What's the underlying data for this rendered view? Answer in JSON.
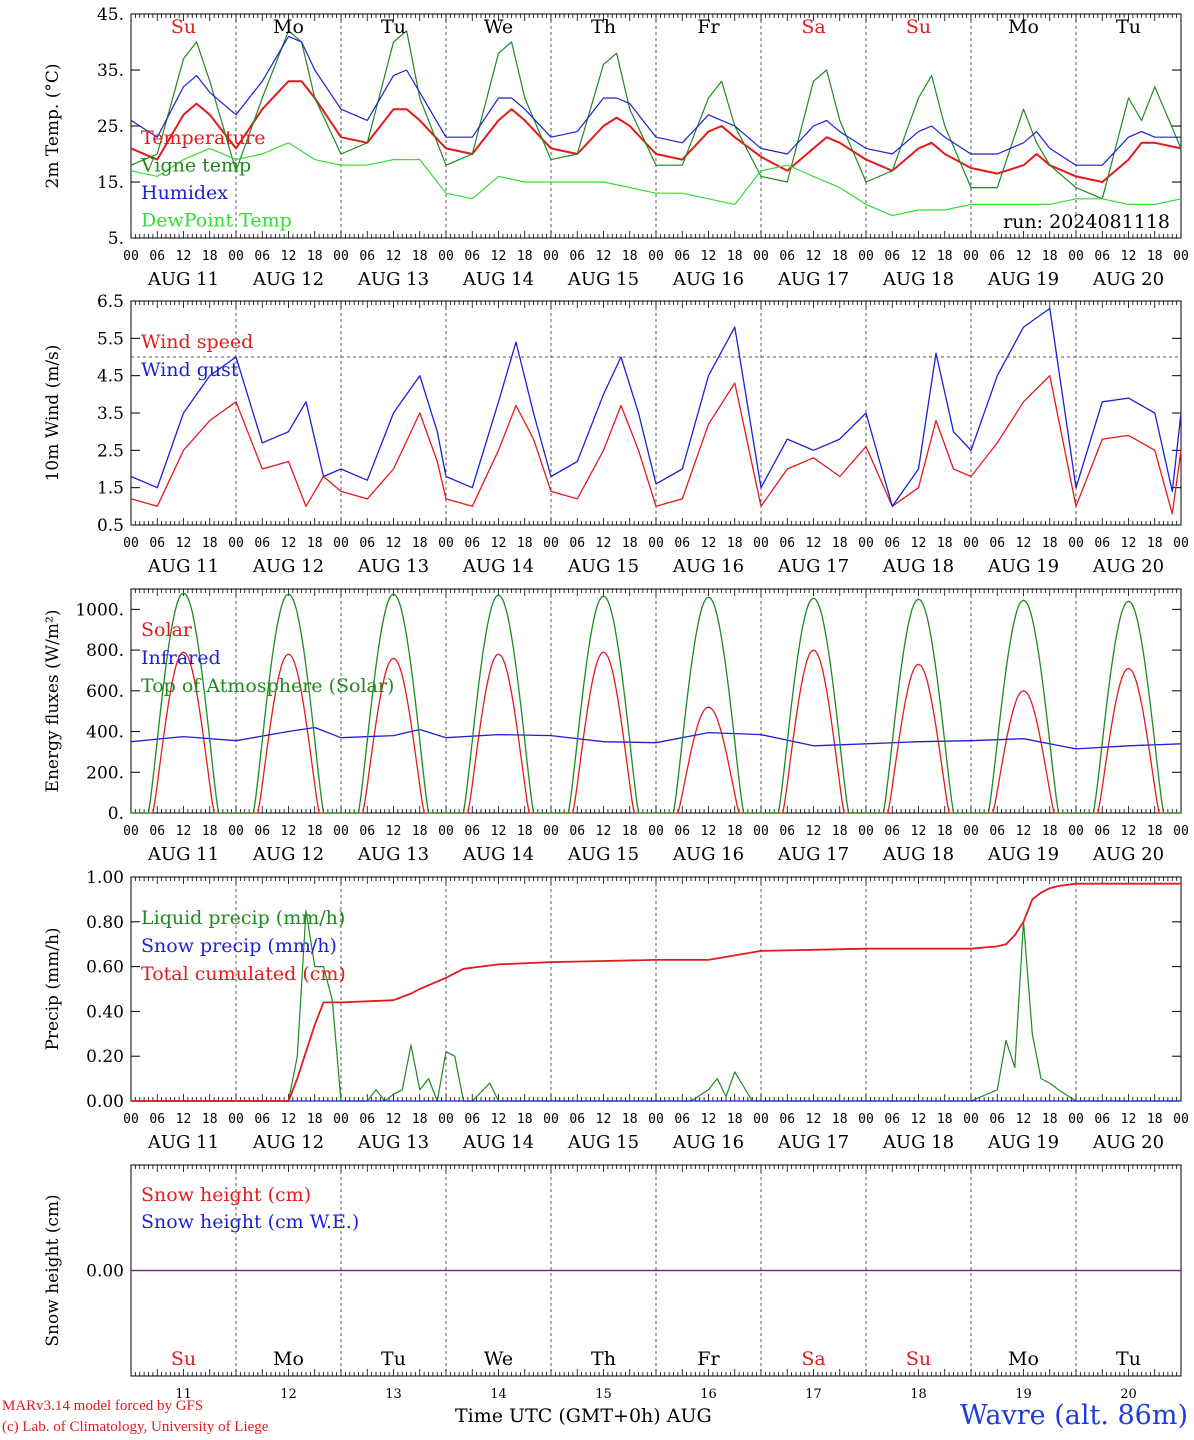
{
  "colors": {
    "red": "#e41a1c",
    "darkgreen": "#1f8a1f",
    "blue": "#1f1fd8",
    "lightgreen": "#33dd33",
    "purple": "#7a2a8a",
    "station": "#1f3bdc"
  },
  "x_axis": {
    "hour_ticks": [
      "00",
      "06",
      "12",
      "18"
    ],
    "end_tick": "00",
    "dates": [
      "AUG 11",
      "AUG 12",
      "AUG 13",
      "AUG 14",
      "AUG 15",
      "AUG 16",
      "AUG 17",
      "AUG 18",
      "AUG 19",
      "AUG 20"
    ],
    "day_names": [
      "Su",
      "Mo",
      "Tu",
      "We",
      "Th",
      "Fr",
      "Sa",
      "Su",
      "Mo",
      "Tu"
    ],
    "day_colors": [
      "red",
      "black",
      "black",
      "black",
      "black",
      "black",
      "red",
      "red",
      "black",
      "black"
    ],
    "day_numbers": [
      "11",
      "12",
      "13",
      "14",
      "15",
      "16",
      "17",
      "18",
      "19",
      "20"
    ],
    "title": "Time UTC (GMT+0h)",
    "month": "AUG"
  },
  "footer": {
    "credit1": "MARv3.14 model forced by GFS",
    "credit2": "(c) Lab. of Climatology, University of Liege",
    "station": "Wavre (alt. 86m)"
  },
  "chart_data": [
    {
      "type": "line",
      "ylabel": "2m Temp. (°C)",
      "ylim": [
        5,
        45
      ],
      "yticks": [
        "45.",
        "35.",
        "25.",
        "15.",
        "5."
      ],
      "yticks_values": [
        45,
        35,
        25,
        15,
        5
      ],
      "run_label": "run: 2024081118",
      "x_unit": "hours since AUG 11 00 UTC",
      "series": [
        {
          "name": "Temperature",
          "color": "red",
          "x": [
            0,
            6,
            12,
            15,
            18,
            24,
            30,
            36,
            39,
            42,
            48,
            54,
            60,
            63,
            66,
            72,
            78,
            84,
            87,
            90,
            96,
            102,
            108,
            111,
            114,
            120,
            126,
            132,
            135,
            138,
            144,
            150,
            156,
            159,
            162,
            168,
            174,
            180,
            183,
            186,
            192,
            198,
            204,
            207,
            210,
            216,
            222,
            228,
            231,
            234,
            240
          ],
          "values": [
            21,
            19,
            27,
            29,
            27,
            21,
            28,
            33,
            33,
            30,
            23,
            22,
            28,
            28,
            26,
            21,
            20,
            26,
            28,
            26,
            21,
            20,
            25,
            26.5,
            25,
            20,
            19,
            24,
            25,
            23,
            19.5,
            17,
            21,
            23,
            22,
            19,
            17,
            21,
            22,
            20,
            17.5,
            16.5,
            18,
            20,
            18,
            16,
            15,
            19,
            22,
            22,
            21
          ]
        },
        {
          "name": "Vigne temp",
          "color": "darkgreen",
          "x": [
            0,
            6,
            12,
            15,
            18,
            24,
            30,
            36,
            39,
            42,
            48,
            54,
            60,
            63,
            66,
            72,
            78,
            84,
            87,
            90,
            96,
            102,
            108,
            111,
            114,
            120,
            126,
            132,
            135,
            138,
            144,
            150,
            156,
            159,
            162,
            168,
            174,
            180,
            183,
            186,
            192,
            198,
            204,
            207,
            210,
            216,
            222,
            228,
            231,
            234,
            240
          ],
          "values": [
            18,
            20,
            37,
            40,
            33,
            17,
            30,
            42,
            40,
            30,
            20,
            22,
            40,
            42,
            30,
            18,
            20,
            38,
            40,
            30,
            19,
            20,
            36,
            38,
            28,
            18,
            18,
            30,
            33,
            25,
            16,
            15,
            33,
            35,
            26,
            15,
            17,
            30,
            34,
            25,
            14,
            14,
            28,
            22,
            18,
            14,
            12,
            30,
            26,
            32,
            21
          ]
        },
        {
          "name": "Humidex",
          "color": "blue",
          "x": [
            0,
            6,
            12,
            15,
            18,
            24,
            30,
            36,
            39,
            42,
            48,
            54,
            60,
            63,
            66,
            72,
            78,
            84,
            87,
            90,
            96,
            102,
            108,
            111,
            114,
            120,
            126,
            132,
            135,
            138,
            144,
            150,
            156,
            159,
            162,
            168,
            174,
            180,
            183,
            186,
            192,
            198,
            204,
            207,
            210,
            216,
            222,
            228,
            231,
            234,
            240
          ],
          "values": [
            26,
            23,
            32,
            34,
            31,
            27,
            33,
            41,
            40,
            35,
            28,
            26,
            34,
            35,
            31,
            23,
            23,
            30,
            30,
            28,
            23,
            24,
            30,
            30,
            29,
            23,
            22,
            27,
            26,
            25,
            21,
            20,
            25,
            26,
            24,
            21,
            20,
            24,
            25,
            23,
            20,
            20,
            22,
            24,
            21,
            18,
            18,
            23,
            24,
            23,
            23
          ]
        },
        {
          "name": "DewPoint Temp",
          "color": "lightgreen",
          "x": [
            0,
            6,
            12,
            18,
            24,
            30,
            36,
            42,
            48,
            54,
            60,
            66,
            72,
            78,
            84,
            90,
            96,
            102,
            108,
            114,
            120,
            126,
            132,
            138,
            144,
            150,
            156,
            162,
            168,
            174,
            180,
            186,
            192,
            198,
            204,
            210,
            216,
            222,
            228,
            234,
            240
          ],
          "values": [
            17,
            16,
            19,
            21,
            19,
            20,
            22,
            19,
            18,
            18,
            19,
            19,
            13,
            12,
            16,
            15,
            15,
            15,
            15,
            14,
            13,
            13,
            12,
            11,
            17,
            18,
            16,
            14,
            11,
            9,
            10,
            10,
            11,
            11,
            11,
            11,
            12,
            12,
            11,
            11,
            12
          ]
        }
      ]
    },
    {
      "type": "line",
      "ylabel": "10m Wind (m/s)",
      "ylim": [
        0.5,
        6.5
      ],
      "yticks": [
        "6.5",
        "5.5",
        "4.5",
        "3.5",
        "2.5",
        "1.5",
        "0.5"
      ],
      "yticks_values": [
        6.5,
        5.5,
        4.5,
        3.5,
        2.5,
        1.5,
        0.5
      ],
      "reference_line": 5.0,
      "x_unit": "hours since AUG 11 00 UTC",
      "series": [
        {
          "name": "Wind speed",
          "color": "red",
          "x": [
            0,
            6,
            12,
            18,
            24,
            30,
            36,
            40,
            44,
            48,
            54,
            60,
            66,
            70,
            72,
            78,
            84,
            88,
            92,
            96,
            102,
            108,
            112,
            116,
            120,
            126,
            132,
            138,
            144,
            150,
            156,
            162,
            168,
            174,
            180,
            184,
            188,
            192,
            198,
            204,
            210,
            216,
            222,
            228,
            234,
            238,
            240
          ],
          "values": [
            1.2,
            1.0,
            2.5,
            3.3,
            3.8,
            2.0,
            2.2,
            1.0,
            1.8,
            1.4,
            1.2,
            2.0,
            3.5,
            2.2,
            1.2,
            1.0,
            2.5,
            3.7,
            2.8,
            1.4,
            1.2,
            2.5,
            3.7,
            2.5,
            1.0,
            1.2,
            3.2,
            4.3,
            1.0,
            2.0,
            2.3,
            1.8,
            2.6,
            1.0,
            1.5,
            3.3,
            2.0,
            1.8,
            2.7,
            3.8,
            4.5,
            1.0,
            2.8,
            2.9,
            2.5,
            0.8,
            2.5
          ]
        },
        {
          "name": "Wind gust",
          "color": "blue",
          "x": [
            0,
            6,
            12,
            18,
            24,
            30,
            36,
            40,
            44,
            48,
            54,
            60,
            66,
            70,
            72,
            78,
            84,
            88,
            92,
            96,
            102,
            108,
            112,
            116,
            120,
            126,
            132,
            138,
            144,
            150,
            156,
            162,
            168,
            174,
            180,
            184,
            188,
            192,
            198,
            204,
            210,
            216,
            222,
            228,
            234,
            238,
            240
          ],
          "values": [
            1.8,
            1.5,
            3.5,
            4.5,
            5.0,
            2.7,
            3.0,
            3.8,
            1.8,
            2.0,
            1.7,
            3.5,
            4.5,
            3.0,
            1.8,
            1.5,
            3.8,
            5.4,
            3.5,
            1.8,
            2.2,
            4.0,
            5.0,
            3.5,
            1.6,
            2.0,
            4.5,
            5.8,
            1.5,
            2.8,
            2.5,
            2.8,
            3.5,
            1.0,
            2.0,
            5.1,
            3.0,
            2.5,
            4.5,
            5.8,
            6.3,
            1.5,
            3.8,
            3.9,
            3.5,
            1.4,
            3.5
          ]
        }
      ]
    },
    {
      "type": "line",
      "ylabel": "Energy fluxes (W/m²)",
      "ylim": [
        0,
        1100
      ],
      "yticks": [
        "1000.",
        "800.",
        "600.",
        "400.",
        "200.",
        "0."
      ],
      "yticks_values": [
        1000,
        800,
        600,
        400,
        200,
        0
      ],
      "x_unit": "hours since AUG 11 00 UTC",
      "series": [
        {
          "name": "Solar",
          "color": "red",
          "peaks": [
            {
              "day": 0,
              "value": 790
            },
            {
              "day": 1,
              "value": 780
            },
            {
              "day": 2,
              "value": 760
            },
            {
              "day": 3,
              "value": 780
            },
            {
              "day": 4,
              "value": 790
            },
            {
              "day": 5,
              "value": 520
            },
            {
              "day": 6,
              "value": 800
            },
            {
              "day": 7,
              "value": 730
            },
            {
              "day": 8,
              "value": 600
            },
            {
              "day": 9,
              "value": 710
            }
          ]
        },
        {
          "name": "Infrared",
          "color": "blue",
          "x": [
            0,
            12,
            24,
            36,
            42,
            48,
            60,
            66,
            72,
            84,
            96,
            108,
            120,
            132,
            144,
            156,
            168,
            180,
            192,
            204,
            216,
            228,
            240
          ],
          "values": [
            350,
            375,
            355,
            400,
            420,
            370,
            380,
            410,
            370,
            385,
            380,
            350,
            345,
            395,
            385,
            330,
            340,
            350,
            355,
            365,
            315,
            330,
            340
          ]
        },
        {
          "name": "Top of Atmosphere (Solar)",
          "color": "darkgreen",
          "peaks": [
            {
              "day": 0,
              "value": 1080
            },
            {
              "day": 1,
              "value": 1075
            },
            {
              "day": 2,
              "value": 1075
            },
            {
              "day": 3,
              "value": 1070
            },
            {
              "day": 4,
              "value": 1065
            },
            {
              "day": 5,
              "value": 1060
            },
            {
              "day": 6,
              "value": 1055
            },
            {
              "day": 7,
              "value": 1050
            },
            {
              "day": 8,
              "value": 1045
            },
            {
              "day": 9,
              "value": 1040
            }
          ]
        }
      ]
    },
    {
      "type": "line",
      "ylabel": "Precip (mm/h)",
      "ylim": [
        0,
        1.0
      ],
      "yticks": [
        "1.00",
        "0.80",
        "0.60",
        "0.40",
        "0.20",
        "0.00"
      ],
      "yticks_values": [
        1.0,
        0.8,
        0.6,
        0.4,
        0.2,
        0.0
      ],
      "x_unit": "hours since AUG 11 00 UTC",
      "series": [
        {
          "name": "Liquid precip (mm/h)",
          "color": "darkgreen",
          "x": [
            0,
            36,
            38,
            40,
            42,
            44,
            46,
            48,
            50,
            54,
            56,
            58,
            60,
            62,
            64,
            66,
            68,
            70,
            72,
            74,
            76,
            78,
            82,
            84,
            120,
            128,
            132,
            134,
            136,
            138,
            142,
            192,
            198,
            200,
            202,
            204,
            206,
            208,
            210,
            212,
            216,
            240
          ],
          "values": [
            0,
            0,
            0.2,
            0.85,
            0.6,
            0.6,
            0.45,
            0,
            0,
            0,
            0.05,
            0,
            0.03,
            0.05,
            0.25,
            0.05,
            0.1,
            0,
            0.22,
            0.2,
            0,
            0,
            0.08,
            0,
            0,
            0,
            0.05,
            0.1,
            0.02,
            0.13,
            0,
            0,
            0.05,
            0.27,
            0.15,
            0.8,
            0.3,
            0.1,
            0.08,
            0.05,
            0,
            0
          ]
        },
        {
          "name": "Snow precip (mm/h)",
          "color": "blue",
          "x": [
            0,
            240
          ],
          "values": [
            0,
            0
          ]
        },
        {
          "name": "Total cumulated (cm)",
          "color": "red",
          "x": [
            0,
            36,
            38,
            40,
            42,
            44,
            48,
            60,
            64,
            66,
            72,
            76,
            84,
            96,
            108,
            120,
            132,
            144,
            168,
            192,
            198,
            200,
            202,
            204,
            206,
            208,
            210,
            212,
            216,
            240
          ],
          "values": [
            0,
            0,
            0.1,
            0.22,
            0.34,
            0.44,
            0.44,
            0.45,
            0.48,
            0.5,
            0.55,
            0.59,
            0.61,
            0.62,
            0.625,
            0.63,
            0.63,
            0.67,
            0.68,
            0.68,
            0.69,
            0.7,
            0.74,
            0.8,
            0.9,
            0.93,
            0.95,
            0.96,
            0.97,
            0.97
          ]
        }
      ]
    },
    {
      "type": "line",
      "ylabel": "Snow height (cm)",
      "ylim": [
        -1,
        1
      ],
      "yticks": [
        "0.00"
      ],
      "yticks_values": [
        0
      ],
      "x_unit": "hours since AUG 11 00 UTC",
      "series": [
        {
          "name": "Snow height (cm)",
          "color": "red",
          "x": [
            0,
            240
          ],
          "values": [
            0,
            0
          ]
        },
        {
          "name": "Snow height (cm W.E.)",
          "color": "blue",
          "x": [
            0,
            240
          ],
          "values": [
            0,
            0
          ]
        }
      ]
    }
  ]
}
